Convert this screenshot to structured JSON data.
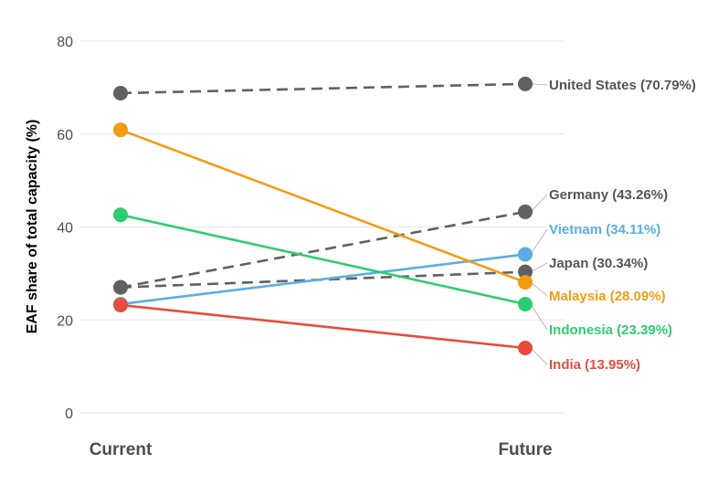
{
  "chart_data": {
    "type": "line",
    "subtype": "slope",
    "title": "",
    "xlabel": "",
    "ylabel": "EAF share of total capacity (%)",
    "categories": [
      "Current",
      "Future"
    ],
    "ylim": [
      0,
      80
    ],
    "yticks": [
      0,
      20,
      40,
      60,
      80
    ],
    "grid": true,
    "series": [
      {
        "name": "United States",
        "values": [
          68.8,
          70.79
        ],
        "label": "United States (70.79%)",
        "color": "#606060",
        "dashed": true
      },
      {
        "name": "Germany",
        "values": [
          27.0,
          43.26
        ],
        "label": "Germany (43.26%)",
        "color": "#606060",
        "dashed": true
      },
      {
        "name": "Vietnam",
        "values": [
          23.4,
          34.11
        ],
        "label": "Vietnam (34.11%)",
        "color": "#5DADE2",
        "dashed": false
      },
      {
        "name": "Japan",
        "values": [
          27.0,
          30.34
        ],
        "label": "Japan (30.34%)",
        "color": "#606060",
        "dashed": true
      },
      {
        "name": "Malaysia",
        "values": [
          60.9,
          28.09
        ],
        "label": "Malaysia (28.09%)",
        "color": "#F39C12",
        "dashed": false
      },
      {
        "name": "Indonesia",
        "values": [
          42.6,
          23.39
        ],
        "label": "Indonesia (23.39%)",
        "color": "#2ECC71",
        "dashed": false
      },
      {
        "name": "India",
        "values": [
          23.2,
          13.95
        ],
        "label": "India (13.95%)",
        "color": "#E74C3C",
        "dashed": false
      }
    ]
  }
}
